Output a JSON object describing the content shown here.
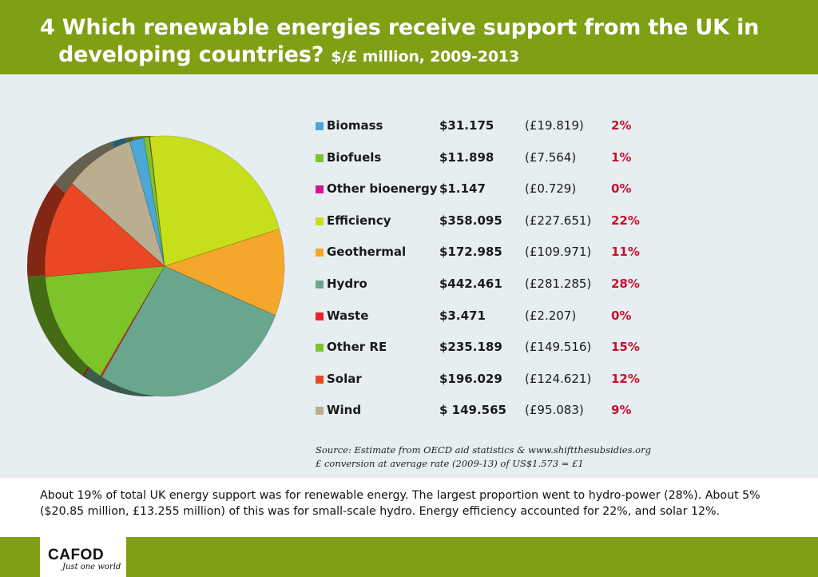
{
  "header": {
    "title_line1": "4 Which renewable energies receive support from the UK in",
    "title_line2": "developing countries?",
    "title_sub": "$/£ million, 2009-2013",
    "background": "#7f9f14"
  },
  "chart_data": {
    "type": "pie",
    "title": "Which renewable energies receive support from the UK in developing countries? $/£ million, 2009-2013",
    "legend_placement": "right",
    "slices": [
      {
        "name": "Biomass",
        "usd": "$31.175",
        "gbp": "(£19.819)",
        "pct_label": "2%",
        "value": 31.175,
        "color": "#4aa8d8"
      },
      {
        "name": "Biofuels",
        "usd": "$11.898",
        "gbp": "(£7.564)",
        "pct_label": "1%",
        "value": 11.898,
        "color": "#7dc32a"
      },
      {
        "name": "Other bioenergy",
        "usd": "$1.147",
        "gbp": "(£0.729)",
        "pct_label": "0%",
        "value": 1.147,
        "color": "#d6188d"
      },
      {
        "name": "Efficiency",
        "usd": "$358.095",
        "gbp": "(£227.651)",
        "pct_label": "22%",
        "value": 358.095,
        "color": "#c6df1a"
      },
      {
        "name": "Geothermal",
        "usd": "$172.985",
        "gbp": "(£109.971)",
        "pct_label": "11%",
        "value": 172.985,
        "color": "#f4a72a"
      },
      {
        "name": "Hydro",
        "usd": "$442.461",
        "gbp": "(£281.285)",
        "pct_label": "28%",
        "value": 442.461,
        "color": "#6aa68e"
      },
      {
        "name": "Waste",
        "usd": "$3.471",
        "gbp": "(£2.207)",
        "pct_label": "0%",
        "value": 3.471,
        "color": "#e8232a"
      },
      {
        "name": "Other RE",
        "usd": "$235.189",
        "gbp": "(£149.516)",
        "pct_label": "15%",
        "value": 235.189,
        "color": "#7dc32a"
      },
      {
        "name": "Solar",
        "usd": "$196.029",
        "gbp": "(£124.621)",
        "pct_label": "12%",
        "value": 196.029,
        "color": "#ea4724"
      },
      {
        "name": "Wind",
        "usd": "$ 149.565",
        "gbp": "(£95.083)",
        "pct_label": "9%",
        "value": 149.565,
        "color": "#b9ae8f"
      }
    ]
  },
  "source": {
    "line1": "Source: Estimate from OECD aid statistics & www.shiftthesubsidies.org",
    "line2": "£ conversion at average rate (2009-13) of US$1.573 = £1"
  },
  "summary": "About 19% of total UK energy support was for renewable energy. The largest proportion went to hydro-power (28%). About 5% ($20.85 million, £13.255 million) of this was for small-scale hydro. Energy efficiency accounted for 22%, and solar 12%.",
  "footer": {
    "logo_text": "CAFOD",
    "logo_tagline": "Just one world",
    "background": "#7f9f14"
  },
  "percent_color": "#c8102e"
}
